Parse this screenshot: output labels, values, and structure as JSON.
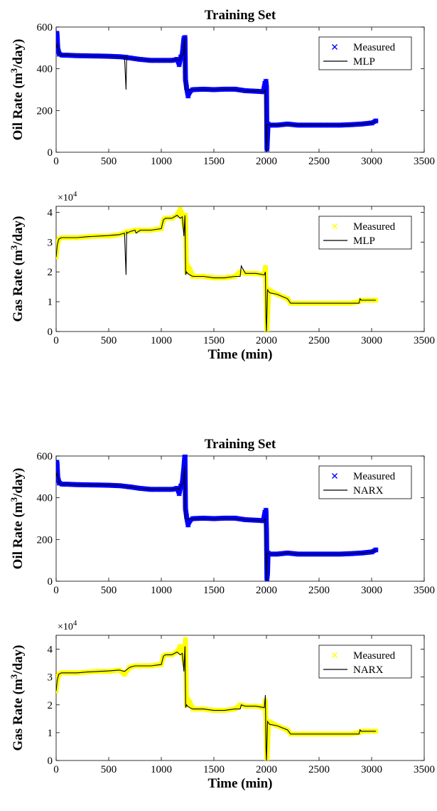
{
  "chart_data": [
    {
      "type": "scatter",
      "title": "Training Set",
      "ylabel": "Oil Rate (m",
      "ylabel_sup": "3",
      "ylabel_tail": "/day)",
      "xlabel": "",
      "xlim": [
        0,
        3500
      ],
      "ylim": [
        0,
        600
      ],
      "x_ticks": [
        "0",
        "500",
        "1000",
        "1500",
        "2000",
        "2500",
        "3000",
        "3500"
      ],
      "y_ticks": [
        "0",
        "200",
        "400",
        "600"
      ],
      "legend_position": "top-right",
      "series": [
        {
          "name": "Measured",
          "marker": "x",
          "color": "#0000ff",
          "x": [
            0,
            8,
            15,
            30,
            60,
            100,
            200,
            300,
            400,
            500,
            600,
            660,
            700,
            800,
            900,
            1000,
            1100,
            1150,
            1170,
            1185,
            1200,
            1215,
            1225,
            1230,
            1240,
            1255,
            1270,
            1300,
            1400,
            1500,
            1600,
            1700,
            1800,
            1900,
            1970,
            1985,
            1995,
            2000,
            2005,
            2015,
            2030,
            2100,
            2200,
            2300,
            2400,
            2500,
            2600,
            2700,
            2800,
            2900,
            3000,
            3040
          ],
          "y": [
            520,
            570,
            500,
            470,
            465,
            465,
            463,
            462,
            461,
            460,
            458,
            455,
            452,
            445,
            440,
            440,
            440,
            445,
            420,
            455,
            470,
            545,
            550,
            350,
            310,
            270,
            290,
            300,
            302,
            300,
            302,
            302,
            295,
            292,
            290,
            330,
            340,
            310,
            15,
            135,
            130,
            130,
            135,
            130,
            130,
            130,
            130,
            130,
            132,
            135,
            140,
            150
          ]
        },
        {
          "name": "MLP",
          "marker": "line",
          "color": "#000000",
          "x": [
            0,
            10,
            30,
            60,
            100,
            200,
            300,
            400,
            500,
            600,
            650,
            665,
            670,
            675,
            700,
            800,
            900,
            1000,
            1100,
            1150,
            1170,
            1190,
            1210,
            1220,
            1230,
            1240,
            1250,
            1300,
            1400,
            1500,
            1600,
            1700,
            1800,
            1900,
            1980,
            1990,
            1995,
            2000,
            2005,
            2010,
            2030,
            2100,
            2200,
            2300,
            2400,
            2500,
            2600,
            2700,
            2800,
            2900,
            3000,
            3040
          ],
          "y": [
            500,
            520,
            470,
            465,
            465,
            463,
            462,
            461,
            460,
            458,
            456,
            300,
            460,
            452,
            450,
            445,
            440,
            440,
            440,
            445,
            440,
            460,
            470,
            550,
            300,
            300,
            298,
            300,
            300,
            300,
            302,
            300,
            295,
            292,
            290,
            300,
            80,
            0,
            130,
            135,
            130,
            130,
            135,
            130,
            130,
            130,
            130,
            130,
            132,
            135,
            140,
            148
          ]
        }
      ]
    },
    {
      "type": "scatter",
      "title": "",
      "ylabel": "Gas Rate (m",
      "ylabel_sup": "3",
      "ylabel_tail": "/day)",
      "xlabel": "Time (min)",
      "y_exponent": "×10",
      "y_exponent_power": "4",
      "xlim": [
        0,
        3500
      ],
      "ylim": [
        0,
        4.2
      ],
      "x_ticks": [
        "0",
        "500",
        "1000",
        "1500",
        "2000",
        "2500",
        "3000",
        "3500"
      ],
      "y_ticks": [
        "0",
        "1",
        "2",
        "3",
        "4"
      ],
      "legend_position": "top-right",
      "series": [
        {
          "name": "Measured",
          "marker": "x",
          "color": "#ffff00",
          "x": [
            0,
            10,
            25,
            50,
            100,
            200,
            300,
            400,
            500,
            600,
            650,
            670,
            700,
            750,
            800,
            900,
            1000,
            1020,
            1040,
            1100,
            1150,
            1180,
            1200,
            1220,
            1230,
            1240,
            1250,
            1270,
            1300,
            1400,
            1500,
            1600,
            1700,
            1750,
            1800,
            1900,
            1980,
            1990,
            2000,
            2005,
            2020,
            2100,
            2200,
            2230,
            2300,
            2400,
            2500,
            2600,
            2700,
            2800,
            2880,
            2900,
            3000,
            3040
          ],
          "y": [
            2.5,
            2.9,
            3.1,
            3.15,
            3.15,
            3.15,
            3.18,
            3.2,
            3.2,
            3.25,
            3.3,
            3.35,
            3.35,
            3.4,
            3.4,
            3.4,
            3.45,
            3.75,
            3.8,
            3.8,
            3.9,
            4.1,
            3.9,
            3.5,
            3.9,
            2.0,
            2.2,
            2.1,
            1.85,
            1.85,
            1.8,
            1.8,
            1.85,
            2.0,
            1.95,
            1.95,
            1.9,
            2.15,
            0.7,
            0.0,
            1.4,
            1.25,
            1.1,
            0.95,
            0.95,
            0.95,
            0.95,
            0.95,
            0.95,
            0.95,
            1.0,
            1.05,
            1.05,
            1.05
          ]
        },
        {
          "name": "MLP",
          "marker": "line",
          "color": "#000000",
          "x": [
            0,
            10,
            25,
            50,
            100,
            200,
            300,
            400,
            500,
            600,
            650,
            665,
            670,
            675,
            700,
            750,
            760,
            800,
            900,
            1000,
            1020,
            1040,
            1100,
            1150,
            1180,
            1200,
            1215,
            1225,
            1232,
            1240,
            1250,
            1270,
            1300,
            1400,
            1500,
            1600,
            1700,
            1750,
            1760,
            1800,
            1900,
            1980,
            1990,
            1995,
            2000,
            2010,
            2030,
            2100,
            2200,
            2230,
            2300,
            2400,
            2500,
            2600,
            2700,
            2800,
            2880,
            2890,
            2900,
            3000,
            3040
          ],
          "y": [
            2.5,
            2.9,
            3.1,
            3.15,
            3.15,
            3.15,
            3.18,
            3.2,
            3.22,
            3.25,
            3.3,
            1.9,
            3.35,
            3.3,
            3.35,
            3.4,
            3.3,
            3.4,
            3.4,
            3.45,
            3.75,
            3.8,
            3.8,
            3.9,
            3.8,
            3.85,
            3.2,
            3.9,
            1.9,
            2.0,
            1.95,
            1.9,
            1.85,
            1.85,
            1.8,
            1.8,
            1.85,
            1.85,
            2.2,
            1.95,
            1.95,
            1.9,
            2.0,
            0.5,
            0.0,
            1.4,
            1.3,
            1.25,
            1.1,
            0.95,
            0.95,
            0.95,
            0.95,
            0.95,
            0.95,
            0.95,
            0.95,
            1.1,
            1.05,
            1.05,
            1.05
          ]
        }
      ]
    },
    {
      "type": "scatter",
      "title": "Training Set",
      "ylabel": "Oil Rate (m",
      "ylabel_sup": "3",
      "ylabel_tail": "/day)",
      "xlabel": "",
      "xlim": [
        0,
        3500
      ],
      "ylim": [
        0,
        600
      ],
      "x_ticks": [
        "0",
        "500",
        "1000",
        "1500",
        "2000",
        "2500",
        "3000",
        "3500"
      ],
      "y_ticks": [
        "0",
        "200",
        "400",
        "600"
      ],
      "legend_position": "top-right",
      "series": [
        {
          "name": "Measured",
          "marker": "x",
          "color": "#0000ff",
          "x": [
            0,
            8,
            15,
            30,
            60,
            100,
            200,
            300,
            400,
            500,
            600,
            700,
            800,
            900,
            1000,
            1100,
            1150,
            1170,
            1185,
            1200,
            1215,
            1225,
            1230,
            1240,
            1255,
            1270,
            1300,
            1400,
            1500,
            1600,
            1700,
            1800,
            1900,
            1970,
            1985,
            1995,
            2000,
            2005,
            2010,
            2015,
            2030,
            2100,
            2200,
            2300,
            2400,
            2500,
            2600,
            2700,
            2800,
            2900,
            3000,
            3040
          ],
          "y": [
            520,
            570,
            500,
            470,
            465,
            465,
            463,
            462,
            461,
            460,
            458,
            452,
            445,
            440,
            440,
            440,
            445,
            420,
            455,
            470,
            545,
            610,
            350,
            310,
            270,
            290,
            300,
            302,
            300,
            302,
            302,
            295,
            292,
            290,
            330,
            340,
            240,
            10,
            40,
            135,
            130,
            130,
            135,
            130,
            130,
            130,
            130,
            130,
            132,
            135,
            140,
            150
          ]
        },
        {
          "name": "NARX",
          "marker": "line",
          "color": "#000000",
          "x": [
            0,
            10,
            30,
            60,
            100,
            200,
            300,
            400,
            500,
            600,
            700,
            800,
            900,
            1000,
            1100,
            1150,
            1170,
            1190,
            1210,
            1220,
            1230,
            1240,
            1250,
            1300,
            1400,
            1500,
            1600,
            1700,
            1800,
            1900,
            1980,
            1990,
            1995,
            2000,
            2005,
            2010,
            2030,
            2100,
            2200,
            2300,
            2400,
            2500,
            2600,
            2700,
            2800,
            2900,
            3000,
            3040
          ],
          "y": [
            500,
            520,
            470,
            465,
            465,
            463,
            462,
            461,
            460,
            458,
            452,
            445,
            440,
            440,
            440,
            445,
            440,
            460,
            470,
            550,
            300,
            300,
            298,
            300,
            300,
            300,
            302,
            300,
            295,
            292,
            290,
            300,
            80,
            0,
            130,
            135,
            130,
            130,
            135,
            130,
            130,
            130,
            130,
            130,
            132,
            135,
            140,
            148
          ]
        }
      ]
    },
    {
      "type": "scatter",
      "title": "",
      "ylabel": "Gas Rate (m",
      "ylabel_sup": "3",
      "ylabel_tail": "/day)",
      "xlabel": "Time (min)",
      "y_exponent": "×10",
      "y_exponent_power": "4",
      "xlim": [
        0,
        3500
      ],
      "ylim": [
        0,
        4.5
      ],
      "x_ticks": [
        "0",
        "500",
        "1000",
        "1500",
        "2000",
        "2500",
        "3000",
        "3500"
      ],
      "y_ticks": [
        "0",
        "1",
        "2",
        "3",
        "4"
      ],
      "legend_position": "top-right",
      "series": [
        {
          "name": "Measured",
          "marker": "x",
          "color": "#ffff00",
          "x": [
            0,
            10,
            25,
            50,
            100,
            200,
            300,
            400,
            500,
            600,
            650,
            700,
            750,
            800,
            900,
            1000,
            1020,
            1040,
            1100,
            1150,
            1180,
            1200,
            1220,
            1230,
            1240,
            1250,
            1270,
            1300,
            1400,
            1500,
            1600,
            1700,
            1750,
            1800,
            1900,
            1980,
            1990,
            2000,
            2005,
            2020,
            2100,
            2200,
            2230,
            2300,
            2400,
            2500,
            2600,
            2700,
            2800,
            2880,
            2900,
            3000,
            3040
          ],
          "y": [
            2.5,
            2.9,
            3.1,
            3.15,
            3.15,
            3.15,
            3.18,
            3.2,
            3.2,
            3.25,
            3.1,
            3.35,
            3.4,
            3.4,
            3.4,
            3.45,
            3.75,
            3.8,
            3.8,
            3.9,
            4.1,
            3.9,
            3.5,
            4.35,
            2.0,
            2.2,
            2.1,
            1.85,
            1.85,
            1.8,
            1.8,
            1.85,
            2.0,
            1.95,
            1.95,
            1.9,
            2.15,
            0.7,
            0.0,
            1.4,
            1.25,
            1.1,
            0.95,
            0.95,
            0.95,
            0.95,
            0.95,
            0.95,
            0.95,
            1.0,
            1.05,
            1.05,
            1.05
          ]
        },
        {
          "name": "NARX",
          "marker": "line",
          "color": "#000000",
          "x": [
            0,
            10,
            25,
            50,
            100,
            200,
            300,
            400,
            500,
            600,
            650,
            700,
            750,
            800,
            900,
            1000,
            1020,
            1040,
            1100,
            1150,
            1180,
            1200,
            1215,
            1225,
            1232,
            1240,
            1250,
            1270,
            1300,
            1400,
            1500,
            1600,
            1700,
            1750,
            1760,
            1800,
            1900,
            1980,
            1990,
            1995,
            2000,
            2010,
            2030,
            2100,
            2200,
            2230,
            2300,
            2400,
            2500,
            2600,
            2700,
            2800,
            2880,
            2890,
            2900,
            3000,
            3040
          ],
          "y": [
            2.5,
            2.9,
            3.1,
            3.15,
            3.15,
            3.15,
            3.18,
            3.2,
            3.22,
            3.25,
            3.2,
            3.35,
            3.4,
            3.4,
            3.4,
            3.45,
            3.75,
            3.8,
            3.8,
            3.9,
            3.8,
            3.85,
            3.2,
            4.1,
            1.9,
            2.0,
            1.95,
            1.9,
            1.85,
            1.85,
            1.8,
            1.8,
            1.85,
            1.85,
            2.0,
            1.95,
            1.95,
            1.9,
            2.35,
            0.5,
            0.0,
            1.4,
            1.3,
            1.25,
            1.1,
            0.95,
            0.95,
            0.95,
            0.95,
            0.95,
            0.95,
            0.95,
            0.95,
            1.1,
            1.05,
            1.05,
            1.05
          ]
        }
      ]
    }
  ]
}
